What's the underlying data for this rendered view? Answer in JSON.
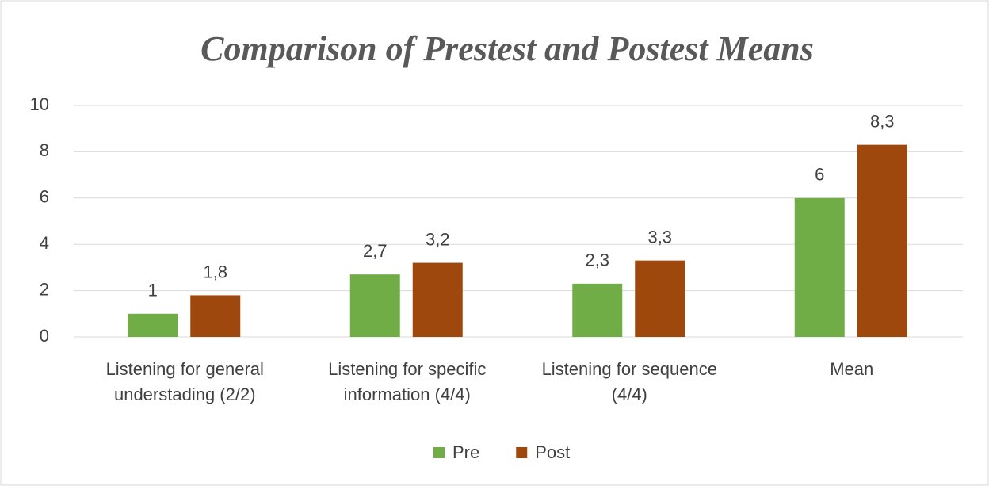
{
  "chart_data": {
    "type": "bar",
    "title": "Comparison of Prestest and Postest Means",
    "categories": [
      "Listening for general understading (2/2)",
      "Listening for specific information (4/4)",
      "Listening for sequence (4/4)",
      "Mean"
    ],
    "series": [
      {
        "name": "Pre",
        "color": "#70ad47",
        "values": [
          1,
          2.7,
          2.3,
          6
        ],
        "value_labels": [
          "1",
          "2,7",
          "2,3",
          "6"
        ]
      },
      {
        "name": "Post",
        "color": "#9e480e",
        "values": [
          1.8,
          3.2,
          3.3,
          8.3
        ],
        "value_labels": [
          "1,8",
          "3,2",
          "3,3",
          "8,3"
        ]
      }
    ],
    "ylim": [
      0,
      10
    ],
    "yticks": [
      0,
      2,
      4,
      6,
      8,
      10
    ],
    "grid": true,
    "legend": "bottom"
  }
}
